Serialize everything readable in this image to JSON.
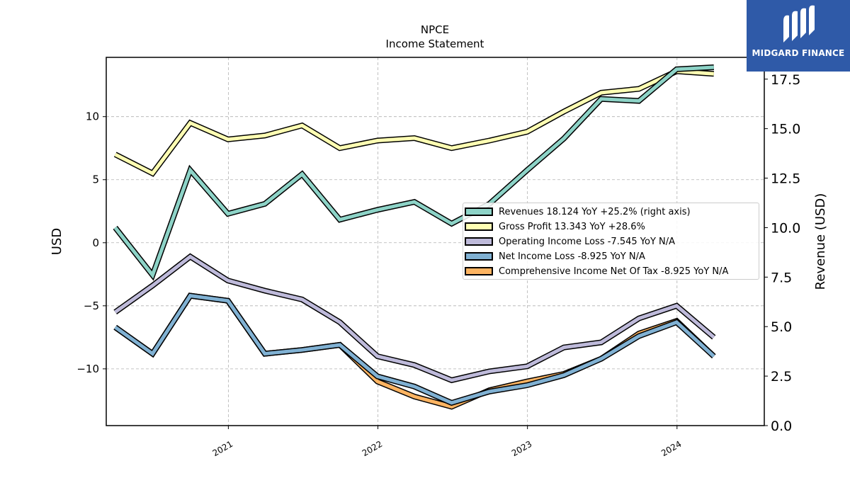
{
  "chart_data": {
    "type": "line",
    "title": "NPCE",
    "subtitle": "Income Statement",
    "ylabel": "USD",
    "ylabel_right": "Revenue (USD)",
    "ylim": [
      -14.5,
      14.7
    ],
    "ylim_right": [
      0,
      18.6
    ],
    "yticks": [
      -10,
      -5,
      0,
      5,
      10
    ],
    "yticks_right": [
      0.0,
      2.5,
      5.0,
      7.5,
      10.0,
      12.5,
      15.0,
      17.5
    ],
    "yticklabels": [
      "−10",
      "−5",
      "0",
      "5",
      "10"
    ],
    "yticklabels_right": [
      "0.0",
      "2.5",
      "5.0",
      "7.5",
      "10.0",
      "12.5",
      "15.0",
      "17.5"
    ],
    "xlim": [
      "2020-03-09",
      "2024-08-01"
    ],
    "xticks": [
      "2021-01-01",
      "2022-01-01",
      "2023-01-01",
      "2024-01-01"
    ],
    "xticklabels": [
      "2021",
      "2022",
      "2023",
      "2024"
    ],
    "grid": true,
    "legend_position": "center-right",
    "x": [
      "2020-03-31",
      "2020-06-30",
      "2020-09-30",
      "2020-12-31",
      "2021-03-31",
      "2021-06-30",
      "2021-09-30",
      "2021-12-31",
      "2022-03-31",
      "2022-06-30",
      "2022-09-30",
      "2022-12-31",
      "2023-03-31",
      "2023-06-30",
      "2023-09-30",
      "2023-12-31",
      "2024-03-31"
    ],
    "series": [
      {
        "name": "Revenues  18.124 YoY +25.2% (right axis)",
        "axis": "right",
        "color": "#8dd3c7",
        "values": [
          10.0,
          7.6,
          12.9,
          10.7,
          11.2,
          12.7,
          10.4,
          10.9,
          11.3,
          10.2,
          11.2,
          12.9,
          14.5,
          16.5,
          16.4,
          18.0,
          18.1
        ]
      },
      {
        "name": "Gross Profit  13.343 YoY +28.6%",
        "axis": "left",
        "color": "#ffffb3",
        "values": [
          7.0,
          5.5,
          9.5,
          8.2,
          8.5,
          9.3,
          7.5,
          8.1,
          8.3,
          7.5,
          8.1,
          8.8,
          10.4,
          11.9,
          12.2,
          13.6,
          13.4
        ]
      },
      {
        "name": "Operating Income Loss  -7.545 YoY N/A",
        "axis": "left",
        "color": "#bebada",
        "values": [
          -5.5,
          -3.4,
          -1.1,
          -3.0,
          -3.8,
          -4.5,
          -6.3,
          -9.0,
          -9.7,
          -10.9,
          -10.2,
          -9.8,
          -8.3,
          -7.9,
          -6.0,
          -5.0,
          -7.5
        ]
      },
      {
        "name": "Net Income Loss  -8.925 YoY N/A",
        "axis": "left",
        "color": "#80b1d3",
        "values": [
          -6.7,
          -8.8,
          -4.2,
          -4.6,
          -8.8,
          -8.5,
          -8.1,
          -10.6,
          -11.4,
          -12.7,
          -11.8,
          -11.3,
          -10.5,
          -9.2,
          -7.4,
          -6.3,
          -9.0
        ]
      },
      {
        "name": "Comprehensive Income Net Of Tax  -8.925 YoY N/A",
        "axis": "left",
        "color": "#fdb462",
        "values": [
          -6.7,
          -8.8,
          -4.2,
          -4.6,
          -8.8,
          -8.5,
          -8.1,
          -11.0,
          -12.2,
          -13.0,
          -11.7,
          -11.0,
          -10.4,
          -9.2,
          -7.2,
          -6.2,
          -9.0
        ]
      }
    ]
  },
  "logo": {
    "text": "MIDGARD FINANCE"
  }
}
